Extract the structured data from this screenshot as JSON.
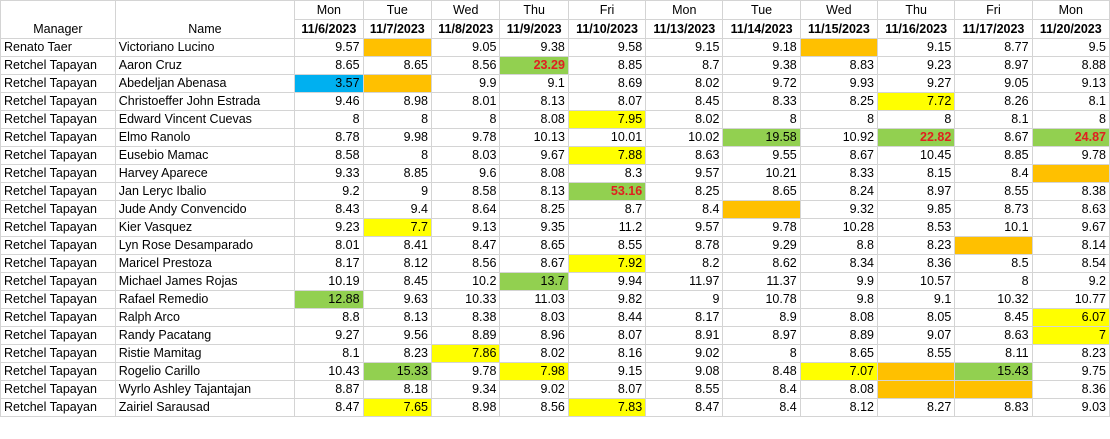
{
  "colors": {
    "yellow": "#ffff00",
    "orange": "#ffc000",
    "green": "#92d050",
    "blue": "#00b0f0",
    "red_text": "#e02020"
  },
  "headers": {
    "manager": "Manager",
    "name": "Name",
    "days": [
      {
        "dow": "Mon",
        "date": "11/6/2023"
      },
      {
        "dow": "Tue",
        "date": "11/7/2023"
      },
      {
        "dow": "Wed",
        "date": "11/8/2023"
      },
      {
        "dow": "Thu",
        "date": "11/9/2023"
      },
      {
        "dow": "Fri",
        "date": "11/10/2023"
      },
      {
        "dow": "Mon",
        "date": "11/13/2023"
      },
      {
        "dow": "Tue",
        "date": "11/14/2023"
      },
      {
        "dow": "Wed",
        "date": "11/15/2023"
      },
      {
        "dow": "Thu",
        "date": "11/16/2023"
      },
      {
        "dow": "Fri",
        "date": "11/17/2023"
      },
      {
        "dow": "Mon",
        "date": "11/20/2023"
      }
    ]
  },
  "rows": [
    {
      "manager": "Renato Taer",
      "name": "Victoriano Lucino",
      "cells": [
        {
          "v": "9.57"
        },
        {
          "v": "",
          "bg": "orange"
        },
        {
          "v": "9.05"
        },
        {
          "v": "9.38"
        },
        {
          "v": "9.58"
        },
        {
          "v": "9.15"
        },
        {
          "v": "9.18"
        },
        {
          "v": "",
          "bg": "orange"
        },
        {
          "v": "9.15"
        },
        {
          "v": "8.77"
        },
        {
          "v": "9.5"
        }
      ]
    },
    {
      "manager": "Retchel Tapayan",
      "name": "Aaron Cruz",
      "cells": [
        {
          "v": "8.65"
        },
        {
          "v": "8.65"
        },
        {
          "v": "8.56"
        },
        {
          "v": "23.29",
          "bg": "green",
          "red": true
        },
        {
          "v": "8.85"
        },
        {
          "v": "8.7"
        },
        {
          "v": "9.38"
        },
        {
          "v": "8.83"
        },
        {
          "v": "9.23"
        },
        {
          "v": "8.97"
        },
        {
          "v": "8.88"
        }
      ]
    },
    {
      "manager": "Retchel Tapayan",
      "name": "Abedeljan Abenasa",
      "cells": [
        {
          "v": "3.57",
          "bg": "blue"
        },
        {
          "v": "",
          "bg": "orange"
        },
        {
          "v": "9.9"
        },
        {
          "v": "9.1"
        },
        {
          "v": "8.69"
        },
        {
          "v": "8.02"
        },
        {
          "v": "9.72"
        },
        {
          "v": "9.93"
        },
        {
          "v": "9.27"
        },
        {
          "v": "9.05"
        },
        {
          "v": "9.13"
        }
      ]
    },
    {
      "manager": "Retchel Tapayan",
      "name": "Christoeffer John Estrada",
      "cells": [
        {
          "v": "9.46"
        },
        {
          "v": "8.98"
        },
        {
          "v": "8.01"
        },
        {
          "v": "8.13"
        },
        {
          "v": "8.07"
        },
        {
          "v": "8.45"
        },
        {
          "v": "8.33"
        },
        {
          "v": "8.25"
        },
        {
          "v": "7.72",
          "bg": "yellow"
        },
        {
          "v": "8.26"
        },
        {
          "v": "8.1"
        }
      ]
    },
    {
      "manager": "Retchel Tapayan",
      "name": "Edward Vincent Cuevas",
      "cells": [
        {
          "v": "8"
        },
        {
          "v": "8"
        },
        {
          "v": "8"
        },
        {
          "v": "8.08"
        },
        {
          "v": "7.95",
          "bg": "yellow"
        },
        {
          "v": "8.02"
        },
        {
          "v": "8"
        },
        {
          "v": "8"
        },
        {
          "v": "8"
        },
        {
          "v": "8.1"
        },
        {
          "v": "8"
        }
      ]
    },
    {
      "manager": "Retchel Tapayan",
      "name": "Elmo Ranolo",
      "cells": [
        {
          "v": "8.78"
        },
        {
          "v": "9.98"
        },
        {
          "v": "9.78"
        },
        {
          "v": "10.13"
        },
        {
          "v": "10.01"
        },
        {
          "v": "10.02"
        },
        {
          "v": "19.58",
          "bg": "green"
        },
        {
          "v": "10.92"
        },
        {
          "v": "22.82",
          "bg": "green",
          "red": true
        },
        {
          "v": "8.67"
        },
        {
          "v": "24.87",
          "bg": "green",
          "red": true
        }
      ]
    },
    {
      "manager": "Retchel Tapayan",
      "name": "Eusebio Mamac",
      "cells": [
        {
          "v": "8.58"
        },
        {
          "v": "8"
        },
        {
          "v": "8.03"
        },
        {
          "v": "9.67"
        },
        {
          "v": "7.88",
          "bg": "yellow"
        },
        {
          "v": "8.63"
        },
        {
          "v": "9.55"
        },
        {
          "v": "8.67"
        },
        {
          "v": "10.45"
        },
        {
          "v": "8.85"
        },
        {
          "v": "9.78"
        }
      ]
    },
    {
      "manager": "Retchel Tapayan",
      "name": "Harvey Aparece",
      "cells": [
        {
          "v": "9.33"
        },
        {
          "v": "8.85"
        },
        {
          "v": "9.6"
        },
        {
          "v": "8.08"
        },
        {
          "v": "8.3"
        },
        {
          "v": "9.57"
        },
        {
          "v": "10.21"
        },
        {
          "v": "8.33"
        },
        {
          "v": "8.15"
        },
        {
          "v": "8.4"
        },
        {
          "v": "",
          "bg": "orange"
        }
      ]
    },
    {
      "manager": "Retchel Tapayan",
      "name": "Jan Leryc Ibalio",
      "cells": [
        {
          "v": "9.2"
        },
        {
          "v": "9"
        },
        {
          "v": "8.58"
        },
        {
          "v": "8.13"
        },
        {
          "v": "53.16",
          "bg": "green",
          "red": true
        },
        {
          "v": "8.25"
        },
        {
          "v": "8.65"
        },
        {
          "v": "8.24"
        },
        {
          "v": "8.97"
        },
        {
          "v": "8.55"
        },
        {
          "v": "8.38"
        }
      ]
    },
    {
      "manager": "Retchel Tapayan",
      "name": "Jude Andy Convencido",
      "cells": [
        {
          "v": "8.43"
        },
        {
          "v": "9.4"
        },
        {
          "v": "8.64"
        },
        {
          "v": "8.25"
        },
        {
          "v": "8.7"
        },
        {
          "v": "8.4"
        },
        {
          "v": "",
          "bg": "orange"
        },
        {
          "v": "9.32"
        },
        {
          "v": "9.85"
        },
        {
          "v": "8.73"
        },
        {
          "v": "8.63"
        }
      ]
    },
    {
      "manager": "Retchel Tapayan",
      "name": "Kier Vasquez",
      "cells": [
        {
          "v": "9.23"
        },
        {
          "v": "7.7",
          "bg": "yellow"
        },
        {
          "v": "9.13"
        },
        {
          "v": "9.35"
        },
        {
          "v": "11.2"
        },
        {
          "v": "9.57"
        },
        {
          "v": "9.78"
        },
        {
          "v": "10.28"
        },
        {
          "v": "8.53"
        },
        {
          "v": "10.1"
        },
        {
          "v": "9.67"
        }
      ]
    },
    {
      "manager": "Retchel Tapayan",
      "name": "Lyn Rose Desamparado",
      "cells": [
        {
          "v": "8.01"
        },
        {
          "v": "8.41"
        },
        {
          "v": "8.47"
        },
        {
          "v": "8.65"
        },
        {
          "v": "8.55"
        },
        {
          "v": "8.78"
        },
        {
          "v": "9.29"
        },
        {
          "v": "8.8"
        },
        {
          "v": "8.23"
        },
        {
          "v": "",
          "bg": "orange"
        },
        {
          "v": "8.14"
        }
      ]
    },
    {
      "manager": "Retchel Tapayan",
      "name": "Maricel Prestoza",
      "cells": [
        {
          "v": "8.17"
        },
        {
          "v": "8.12"
        },
        {
          "v": "8.56"
        },
        {
          "v": "8.67"
        },
        {
          "v": "7.92",
          "bg": "yellow"
        },
        {
          "v": "8.2"
        },
        {
          "v": "8.62"
        },
        {
          "v": "8.34"
        },
        {
          "v": "8.36"
        },
        {
          "v": "8.5"
        },
        {
          "v": "8.54"
        }
      ]
    },
    {
      "manager": "Retchel Tapayan",
      "name": "Michael James Rojas",
      "cells": [
        {
          "v": "10.19"
        },
        {
          "v": "8.45"
        },
        {
          "v": "10.2"
        },
        {
          "v": "13.7",
          "bg": "green"
        },
        {
          "v": "9.94"
        },
        {
          "v": "11.97"
        },
        {
          "v": "11.37"
        },
        {
          "v": "9.9"
        },
        {
          "v": "10.57"
        },
        {
          "v": "8"
        },
        {
          "v": "9.2"
        }
      ]
    },
    {
      "manager": "Retchel Tapayan",
      "name": "Rafael Remedio",
      "cells": [
        {
          "v": "12.88",
          "bg": "green"
        },
        {
          "v": "9.63"
        },
        {
          "v": "10.33"
        },
        {
          "v": "11.03"
        },
        {
          "v": "9.82"
        },
        {
          "v": "9"
        },
        {
          "v": "10.78"
        },
        {
          "v": "9.8"
        },
        {
          "v": "9.1"
        },
        {
          "v": "10.32"
        },
        {
          "v": "10.77"
        }
      ]
    },
    {
      "manager": "Retchel Tapayan",
      "name": "Ralph Arco",
      "cells": [
        {
          "v": "8.8"
        },
        {
          "v": "8.13"
        },
        {
          "v": "8.38"
        },
        {
          "v": "8.03"
        },
        {
          "v": "8.44"
        },
        {
          "v": "8.17"
        },
        {
          "v": "8.9"
        },
        {
          "v": "8.08"
        },
        {
          "v": "8.05"
        },
        {
          "v": "8.45"
        },
        {
          "v": "6.07",
          "bg": "yellow"
        }
      ]
    },
    {
      "manager": "Retchel Tapayan",
      "name": "Randy Pacatang",
      "cells": [
        {
          "v": "9.27"
        },
        {
          "v": "9.56"
        },
        {
          "v": "8.89"
        },
        {
          "v": "8.96"
        },
        {
          "v": "8.07"
        },
        {
          "v": "8.91"
        },
        {
          "v": "8.97"
        },
        {
          "v": "8.89"
        },
        {
          "v": "9.07"
        },
        {
          "v": "8.63"
        },
        {
          "v": "7",
          "bg": "yellow"
        }
      ]
    },
    {
      "manager": "Retchel Tapayan",
      "name": "Ristie Mamitag",
      "cells": [
        {
          "v": "8.1"
        },
        {
          "v": "8.23"
        },
        {
          "v": "7.86",
          "bg": "yellow"
        },
        {
          "v": "8.02"
        },
        {
          "v": "8.16"
        },
        {
          "v": "9.02"
        },
        {
          "v": "8"
        },
        {
          "v": "8.65"
        },
        {
          "v": "8.55"
        },
        {
          "v": "8.11"
        },
        {
          "v": "8.23"
        }
      ]
    },
    {
      "manager": "Retchel Tapayan",
      "name": "Rogelio Carillo",
      "cells": [
        {
          "v": "10.43"
        },
        {
          "v": "15.33",
          "bg": "green"
        },
        {
          "v": "9.78"
        },
        {
          "v": "7.98",
          "bg": "yellow"
        },
        {
          "v": "9.15"
        },
        {
          "v": "9.08"
        },
        {
          "v": "8.48"
        },
        {
          "v": "7.07",
          "bg": "yellow"
        },
        {
          "v": "",
          "bg": "orange"
        },
        {
          "v": "15.43",
          "bg": "green"
        },
        {
          "v": "9.75"
        }
      ]
    },
    {
      "manager": "Retchel Tapayan",
      "name": "Wyrlo Ashley Tajantajan",
      "cells": [
        {
          "v": "8.87"
        },
        {
          "v": "8.18"
        },
        {
          "v": "9.34"
        },
        {
          "v": "9.02"
        },
        {
          "v": "8.07"
        },
        {
          "v": "8.55"
        },
        {
          "v": "8.4"
        },
        {
          "v": "8.08"
        },
        {
          "v": "",
          "bg": "orange"
        },
        {
          "v": "",
          "bg": "orange"
        },
        {
          "v": "8.36"
        }
      ]
    },
    {
      "manager": "Retchel Tapayan",
      "name": "Zairiel Sarausad",
      "cells": [
        {
          "v": "8.47"
        },
        {
          "v": "7.65",
          "bg": "yellow"
        },
        {
          "v": "8.98"
        },
        {
          "v": "8.56"
        },
        {
          "v": "7.83",
          "bg": "yellow"
        },
        {
          "v": "8.47"
        },
        {
          "v": "8.4"
        },
        {
          "v": "8.12"
        },
        {
          "v": "8.27"
        },
        {
          "v": "8.83"
        },
        {
          "v": "9.03"
        }
      ]
    }
  ]
}
